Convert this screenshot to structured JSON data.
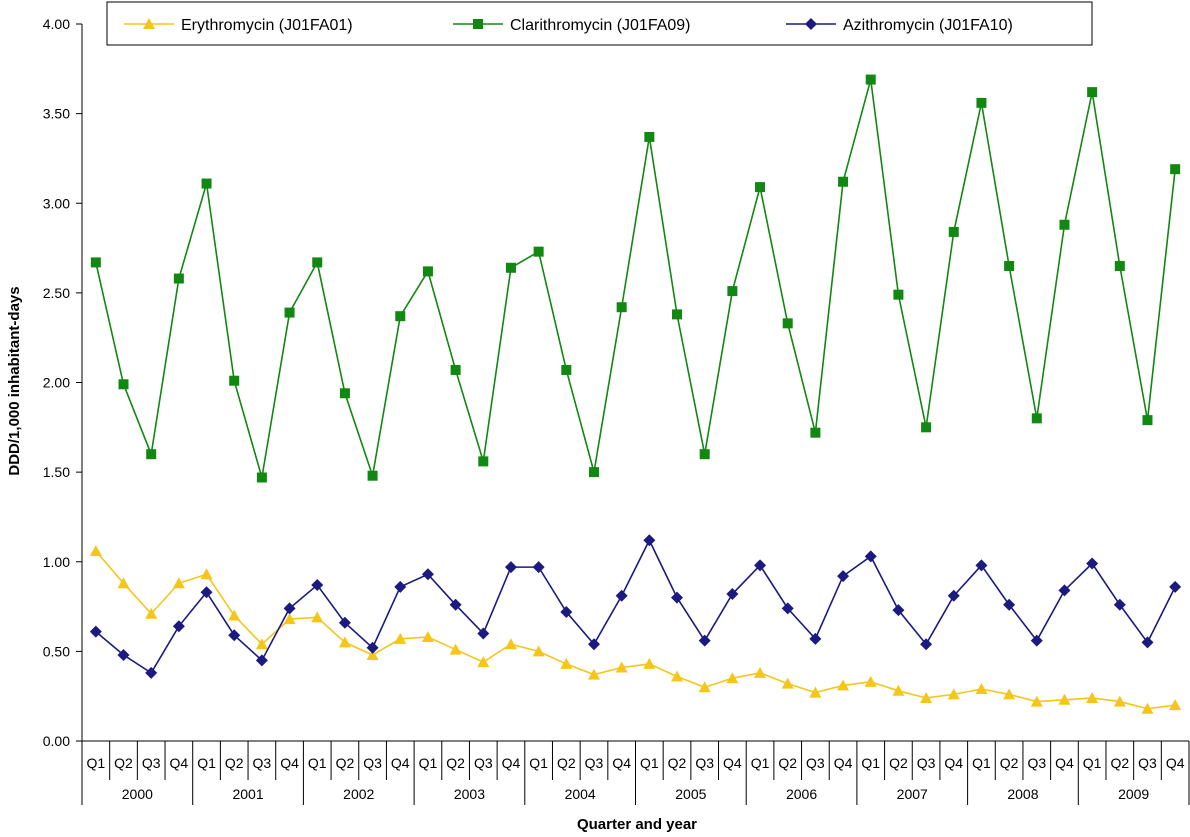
{
  "chart_data": {
    "type": "line",
    "title": "",
    "xlabel": "Quarter and year",
    "ylabel": "DDD/1,000 inhabitant-days",
    "ylim": [
      0,
      4
    ],
    "y_ticks": [
      "0.00",
      "0.50",
      "1.00",
      "1.50",
      "2.00",
      "2.50",
      "3.00",
      "3.50",
      "4.00"
    ],
    "quarters": [
      "Q1",
      "Q2",
      "Q3",
      "Q4"
    ],
    "years": [
      "2000",
      "2001",
      "2002",
      "2003",
      "2004",
      "2005",
      "2006",
      "2007",
      "2008",
      "2009"
    ],
    "grid": false,
    "legend_position": "top",
    "series": [
      {
        "name": "Erythromycin (J01FA01)",
        "color": "#F5C518",
        "marker": "triangle",
        "values": [
          1.06,
          0.88,
          0.71,
          0.88,
          0.93,
          0.7,
          0.54,
          0.68,
          0.69,
          0.55,
          0.48,
          0.57,
          0.58,
          0.51,
          0.44,
          0.54,
          0.5,
          0.43,
          0.37,
          0.41,
          0.43,
          0.36,
          0.3,
          0.35,
          0.38,
          0.32,
          0.27,
          0.31,
          0.33,
          0.28,
          0.24,
          0.26,
          0.29,
          0.26,
          0.22,
          0.23,
          0.24,
          0.22,
          0.18,
          0.2
        ]
      },
      {
        "name": "Clarithromycin (J01FA09)",
        "color": "#118811",
        "marker": "square",
        "values": [
          2.67,
          1.99,
          1.6,
          2.58,
          3.11,
          2.01,
          1.47,
          2.39,
          2.67,
          1.94,
          1.48,
          2.37,
          2.62,
          2.07,
          1.56,
          2.64,
          2.73,
          2.07,
          1.5,
          2.42,
          3.37,
          2.38,
          1.6,
          2.51,
          3.09,
          2.33,
          1.72,
          3.12,
          3.69,
          2.49,
          1.75,
          2.84,
          3.56,
          2.65,
          1.8,
          2.88,
          3.62,
          2.65,
          1.79,
          3.19
        ]
      },
      {
        "name": "Azithromycin (J01FA10)",
        "color": "#1A1A80",
        "marker": "diamond",
        "values": [
          0.61,
          0.48,
          0.38,
          0.64,
          0.83,
          0.59,
          0.45,
          0.74,
          0.87,
          0.66,
          0.52,
          0.86,
          0.93,
          0.76,
          0.6,
          0.97,
          0.97,
          0.72,
          0.54,
          0.81,
          1.12,
          0.8,
          0.56,
          0.82,
          0.98,
          0.74,
          0.57,
          0.92,
          1.03,
          0.73,
          0.54,
          0.81,
          0.98,
          0.76,
          0.56,
          0.84,
          0.99,
          0.76,
          0.55,
          0.86
        ]
      }
    ]
  }
}
